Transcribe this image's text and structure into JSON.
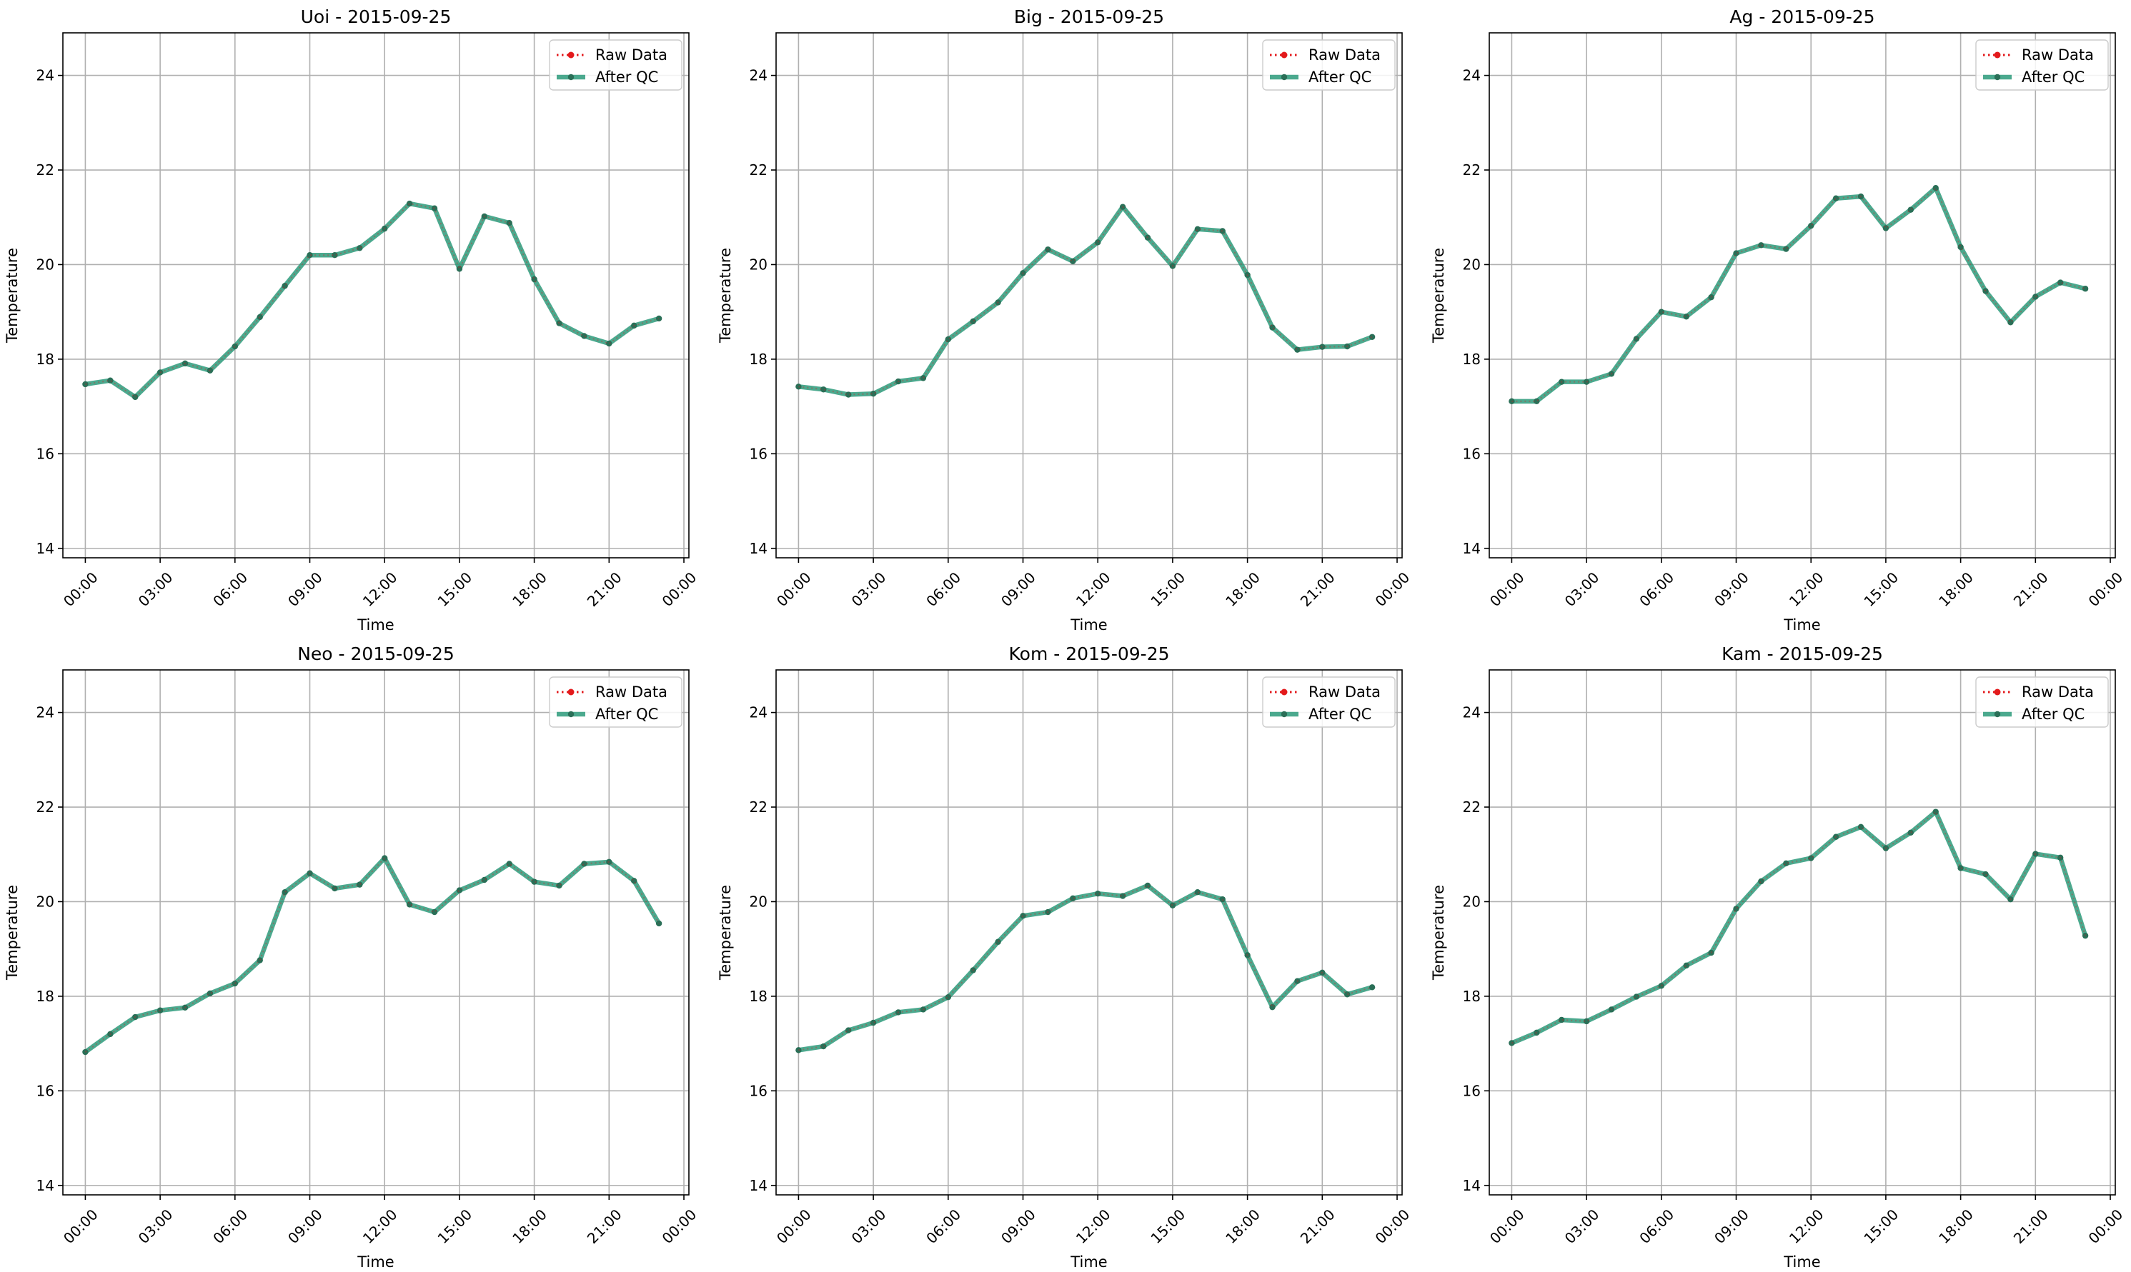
{
  "figure": {
    "colors": {
      "raw": "#e31a1c",
      "qc": "#2b9a7a",
      "marker": "#2a6f57",
      "grid": "#b0b0b0"
    },
    "legend_position": "upper-right",
    "grid": true
  },
  "chart_data": [
    {
      "type": "line",
      "title": "Uoi - 2015-09-25",
      "xlabel": "Time",
      "ylabel": "Temperature",
      "ylim": [
        13.8,
        24.9
      ],
      "xlim": [
        -0.9,
        24.2
      ],
      "x_hours": [
        0,
        1,
        2,
        3,
        4,
        5,
        6,
        7,
        8,
        9,
        10,
        11,
        12,
        13,
        14,
        15,
        16,
        17,
        18,
        19,
        20,
        21,
        22,
        23
      ],
      "x_ticks": [
        "00:00",
        "03:00",
        "06:00",
        "09:00",
        "12:00",
        "15:00",
        "18:00",
        "21:00",
        "00:00"
      ],
      "y_ticks": [
        14,
        16,
        18,
        20,
        22,
        24
      ],
      "series": [
        {
          "name": "Raw Data",
          "style": "dotted",
          "values": [
            17.47,
            17.55,
            17.2,
            17.72,
            17.91,
            17.76,
            18.27,
            18.89,
            19.55,
            20.2,
            20.2,
            20.35,
            20.76,
            21.29,
            21.19,
            19.91,
            21.02,
            20.88,
            19.69,
            18.76,
            18.49,
            18.33,
            18.71,
            18.86
          ]
        },
        {
          "name": "After QC",
          "style": "solid",
          "values": [
            17.47,
            17.55,
            17.2,
            17.72,
            17.91,
            17.76,
            18.27,
            18.89,
            19.55,
            20.2,
            20.2,
            20.35,
            20.76,
            21.29,
            21.19,
            19.91,
            21.02,
            20.88,
            19.69,
            18.76,
            18.49,
            18.33,
            18.71,
            18.86
          ]
        }
      ]
    },
    {
      "type": "line",
      "title": "Big - 2015-09-25",
      "xlabel": "Time",
      "ylabel": "Temperature",
      "ylim": [
        13.8,
        24.9
      ],
      "xlim": [
        -0.9,
        24.2
      ],
      "x_hours": [
        0,
        1,
        2,
        3,
        4,
        5,
        6,
        7,
        8,
        9,
        10,
        11,
        12,
        13,
        14,
        15,
        16,
        17,
        18,
        19,
        20,
        21,
        22,
        23
      ],
      "x_ticks": [
        "00:00",
        "03:00",
        "06:00",
        "09:00",
        "12:00",
        "15:00",
        "18:00",
        "21:00",
        "00:00"
      ],
      "y_ticks": [
        14,
        16,
        18,
        20,
        22,
        24
      ],
      "series": [
        {
          "name": "Raw Data",
          "style": "dotted",
          "values": [
            17.42,
            17.36,
            17.25,
            17.27,
            17.53,
            17.6,
            18.42,
            18.8,
            19.2,
            19.82,
            20.32,
            20.07,
            20.47,
            21.22,
            20.57,
            19.97,
            20.75,
            20.71,
            19.78,
            18.67,
            18.2,
            18.26,
            18.27,
            18.47
          ]
        },
        {
          "name": "After QC",
          "style": "solid",
          "values": [
            17.42,
            17.36,
            17.25,
            17.27,
            17.53,
            17.6,
            18.42,
            18.8,
            19.2,
            19.82,
            20.32,
            20.07,
            20.47,
            21.22,
            20.57,
            19.97,
            20.75,
            20.71,
            19.78,
            18.67,
            18.2,
            18.26,
            18.27,
            18.47
          ]
        }
      ]
    },
    {
      "type": "line",
      "title": "Ag - 2015-09-25",
      "xlabel": "Time",
      "ylabel": "Temperature",
      "ylim": [
        13.8,
        24.9
      ],
      "xlim": [
        -0.9,
        24.2
      ],
      "x_hours": [
        0,
        1,
        2,
        3,
        4,
        5,
        6,
        7,
        8,
        9,
        10,
        11,
        12,
        13,
        14,
        15,
        16,
        17,
        18,
        19,
        20,
        21,
        22,
        23
      ],
      "x_ticks": [
        "00:00",
        "03:00",
        "06:00",
        "09:00",
        "12:00",
        "15:00",
        "18:00",
        "21:00",
        "00:00"
      ],
      "y_ticks": [
        14,
        16,
        18,
        20,
        22,
        24
      ],
      "series": [
        {
          "name": "Raw Data",
          "style": "dotted",
          "values": [
            17.11,
            17.11,
            17.52,
            17.52,
            17.69,
            18.43,
            19.0,
            18.9,
            19.31,
            20.24,
            20.41,
            20.33,
            20.82,
            21.4,
            21.44,
            20.77,
            21.16,
            21.62,
            20.37,
            19.44,
            18.78,
            19.32,
            19.62,
            19.49
          ]
        },
        {
          "name": "After QC",
          "style": "solid",
          "values": [
            17.11,
            17.11,
            17.52,
            17.52,
            17.69,
            18.43,
            19.0,
            18.9,
            19.31,
            20.24,
            20.41,
            20.33,
            20.82,
            21.4,
            21.44,
            20.77,
            21.16,
            21.62,
            20.37,
            19.44,
            18.78,
            19.32,
            19.62,
            19.49
          ]
        }
      ]
    },
    {
      "type": "line",
      "title": "Neo - 2015-09-25",
      "xlabel": "Time",
      "ylabel": "Temperature",
      "ylim": [
        13.8,
        24.9
      ],
      "xlim": [
        -0.9,
        24.2
      ],
      "x_hours": [
        0,
        1,
        2,
        3,
        4,
        5,
        6,
        7,
        8,
        9,
        10,
        11,
        12,
        13,
        14,
        15,
        16,
        17,
        18,
        19,
        20,
        21,
        22,
        23
      ],
      "x_ticks": [
        "00:00",
        "03:00",
        "06:00",
        "09:00",
        "12:00",
        "15:00",
        "18:00",
        "21:00",
        "00:00"
      ],
      "y_ticks": [
        14,
        16,
        18,
        20,
        22,
        24
      ],
      "series": [
        {
          "name": "Raw Data",
          "style": "dotted",
          "values": [
            16.82,
            17.2,
            17.56,
            17.7,
            17.76,
            18.06,
            18.27,
            18.76,
            20.2,
            20.6,
            20.28,
            20.36,
            20.92,
            19.94,
            19.78,
            20.24,
            20.46,
            20.8,
            20.42,
            20.34,
            20.8,
            20.84,
            20.44,
            19.54
          ]
        },
        {
          "name": "After QC",
          "style": "solid",
          "values": [
            16.82,
            17.2,
            17.56,
            17.7,
            17.76,
            18.06,
            18.27,
            18.76,
            20.2,
            20.6,
            20.28,
            20.36,
            20.92,
            19.94,
            19.78,
            20.24,
            20.46,
            20.8,
            20.42,
            20.34,
            20.8,
            20.84,
            20.44,
            19.54
          ]
        }
      ]
    },
    {
      "type": "line",
      "title": "Kom - 2015-09-25",
      "xlabel": "Time",
      "ylabel": "Temperature",
      "ylim": [
        13.8,
        24.9
      ],
      "xlim": [
        -0.9,
        24.2
      ],
      "x_hours": [
        0,
        1,
        2,
        3,
        4,
        5,
        6,
        7,
        8,
        9,
        10,
        11,
        12,
        13,
        14,
        15,
        16,
        17,
        18,
        19,
        20,
        21,
        22,
        23
      ],
      "x_ticks": [
        "00:00",
        "03:00",
        "06:00",
        "09:00",
        "12:00",
        "15:00",
        "18:00",
        "21:00",
        "00:00"
      ],
      "y_ticks": [
        14,
        16,
        18,
        20,
        22,
        24
      ],
      "series": [
        {
          "name": "Raw Data",
          "style": "dotted",
          "values": [
            16.86,
            16.94,
            17.28,
            17.44,
            17.66,
            17.72,
            17.98,
            18.55,
            19.15,
            19.7,
            19.78,
            20.07,
            20.17,
            20.12,
            20.34,
            19.92,
            20.2,
            20.05,
            18.87,
            17.77,
            18.32,
            18.5,
            18.04,
            18.19
          ]
        },
        {
          "name": "After QC",
          "style": "solid",
          "values": [
            16.86,
            16.94,
            17.28,
            17.44,
            17.66,
            17.72,
            17.98,
            18.55,
            19.15,
            19.7,
            19.78,
            20.07,
            20.17,
            20.12,
            20.34,
            19.92,
            20.2,
            20.05,
            18.87,
            17.77,
            18.32,
            18.5,
            18.04,
            18.19
          ]
        }
      ]
    },
    {
      "type": "line",
      "title": "Kam - 2015-09-25",
      "xlabel": "Time",
      "ylabel": "Temperature",
      "ylim": [
        13.8,
        24.9
      ],
      "xlim": [
        -0.9,
        24.2
      ],
      "x_hours": [
        0,
        1,
        2,
        3,
        4,
        5,
        6,
        7,
        8,
        9,
        10,
        11,
        12,
        13,
        14,
        15,
        16,
        17,
        18,
        19,
        20,
        21,
        22,
        23
      ],
      "x_ticks": [
        "00:00",
        "03:00",
        "06:00",
        "09:00",
        "12:00",
        "15:00",
        "18:00",
        "21:00",
        "00:00"
      ],
      "y_ticks": [
        14,
        16,
        18,
        20,
        22,
        24
      ],
      "series": [
        {
          "name": "Raw Data",
          "style": "dotted",
          "values": [
            17.01,
            17.23,
            17.5,
            17.47,
            17.72,
            17.99,
            18.22,
            18.65,
            18.92,
            19.85,
            20.43,
            20.81,
            20.92,
            21.37,
            21.58,
            21.13,
            21.46,
            21.9,
            20.71,
            20.58,
            20.05,
            21.01,
            20.93,
            19.28
          ]
        },
        {
          "name": "After QC",
          "style": "solid",
          "values": [
            17.01,
            17.23,
            17.5,
            17.47,
            17.72,
            17.99,
            18.22,
            18.65,
            18.92,
            19.85,
            20.43,
            20.81,
            20.92,
            21.37,
            21.58,
            21.13,
            21.46,
            21.9,
            20.71,
            20.58,
            20.05,
            21.01,
            20.93,
            19.28
          ]
        }
      ]
    }
  ]
}
